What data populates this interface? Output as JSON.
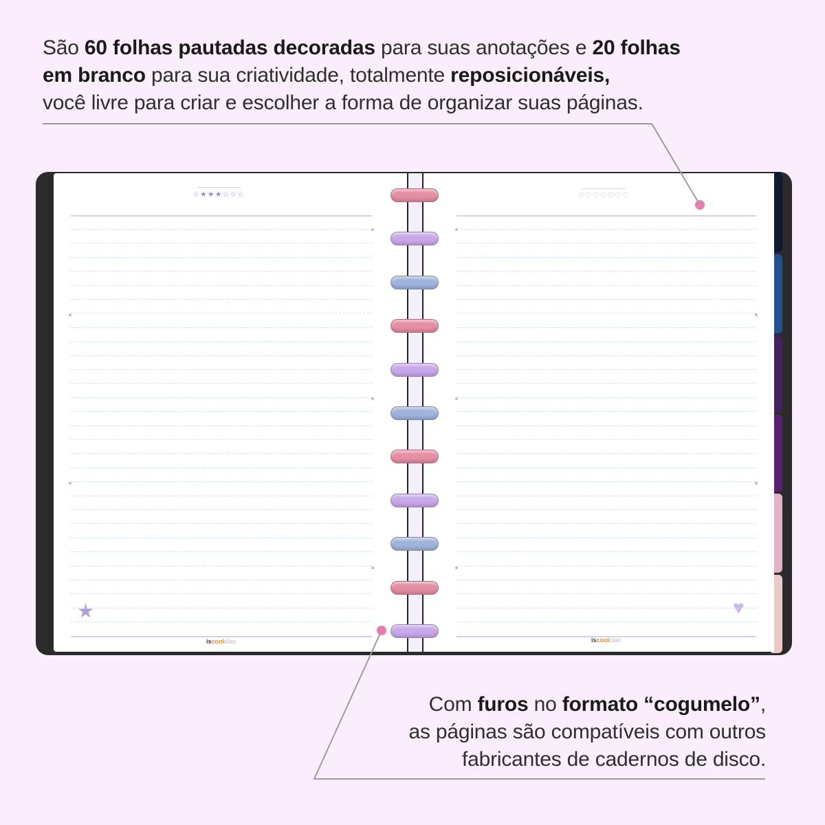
{
  "top_callout": {
    "segments": [
      {
        "text": "São ",
        "bold": false
      },
      {
        "text": "60 folhas pautadas decoradas",
        "bold": true
      },
      {
        "text": " para suas anotações e ",
        "bold": false
      },
      {
        "text": "20 folhas",
        "bold": true
      },
      {
        "br": true
      },
      {
        "text": "em branco",
        "bold": true
      },
      {
        "text": " para sua criatividade, totalmente ",
        "bold": false
      },
      {
        "text": "reposicionáveis,",
        "bold": true
      },
      {
        "br": true
      },
      {
        "text": "você livre para criar e escolher a forma de organizar suas páginas.",
        "bold": false
      }
    ]
  },
  "bottom_callout": {
    "segments": [
      {
        "text": "Com ",
        "bold": false
      },
      {
        "text": "furos",
        "bold": true
      },
      {
        "text": " no ",
        "bold": false
      },
      {
        "text": "formato “cogumelo”",
        "bold": true
      },
      {
        "text": ",",
        "bold": false
      },
      {
        "br": true
      },
      {
        "text": "as páginas são compatíveis com outros ",
        "bold": false
      },
      {
        "br": true
      },
      {
        "text": "fabricantes de cadernos de disco.",
        "bold": false
      }
    ]
  },
  "notebook": {
    "left_page": {
      "header_deco": "☆★★★☆☆☆",
      "logo": {
        "part1": "is",
        "part2": "cool",
        "part3": "clac"
      },
      "sticker": "star-sticker-icon"
    },
    "right_page": {
      "header_deco": "♡♡♡♡♡♡♡",
      "logo": {
        "part1": "is",
        "part2": "cool",
        "part3": "clac"
      },
      "sticker": "heart-planet-sticker-icon"
    },
    "ring_colors": [
      "#e58ea3",
      "#c8a8ea",
      "#9fb4dc"
    ],
    "tab_colors": [
      "#0d1a30",
      "#23508f",
      "#432060",
      "#5a2070",
      "#e1b2ca",
      "#ecc9c9"
    ],
    "accent_dot_color": "#e27fae"
  }
}
